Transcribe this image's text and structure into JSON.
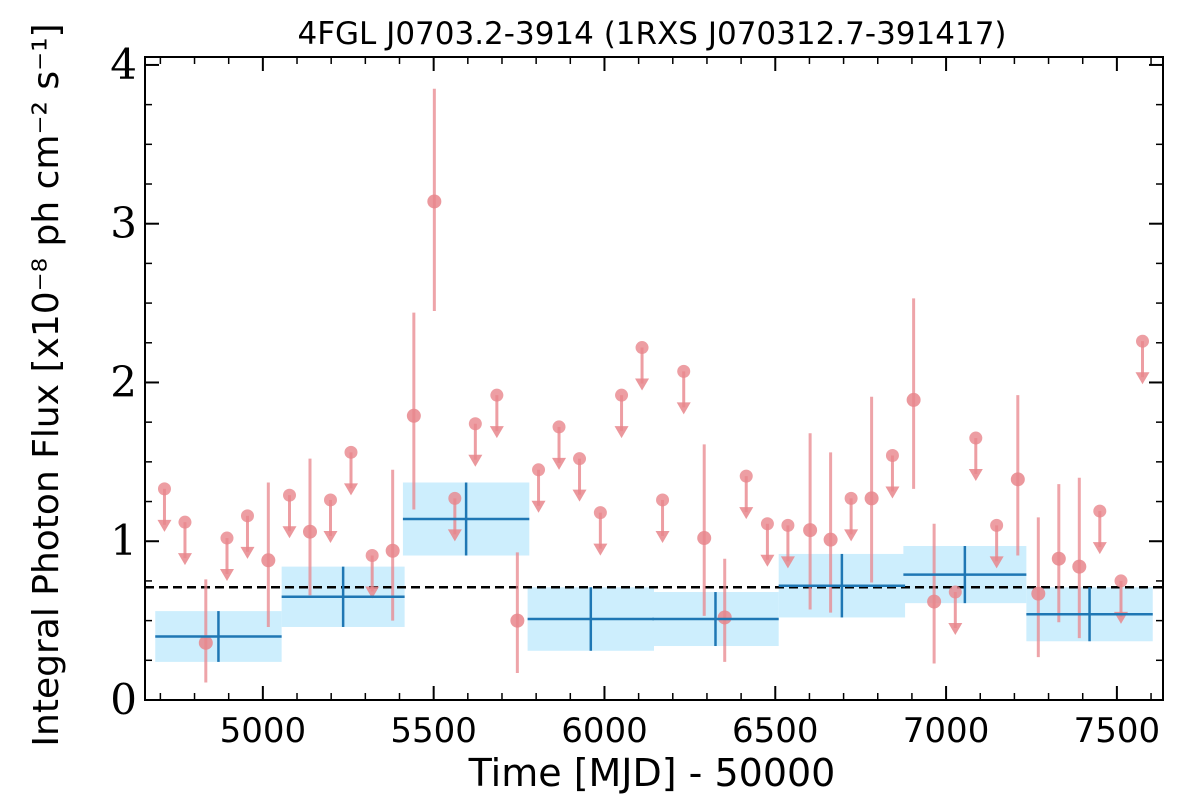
{
  "chart_data": {
    "type": "scatter",
    "title": "4FGL J0703.2-3914 (1RXS J070312.7-391417)",
    "xlabel": "Time [MJD] - 50000",
    "ylabel": "Integral Photon Flux [x10⁻⁸ ph cm⁻² s⁻¹]",
    "xlim": [
      4655,
      7635
    ],
    "ylim": [
      0,
      4.05
    ],
    "xticks": [
      5000,
      5500,
      6000,
      6500,
      7000,
      7500
    ],
    "xtick_labels": [
      "5000",
      "5500",
      "6000",
      "6500",
      "7000",
      "7500"
    ],
    "yticks": [
      0,
      1,
      2,
      3,
      4
    ],
    "ytick_labels": [
      "0",
      "1",
      "2",
      "3",
      "4"
    ],
    "grid": false,
    "reference_line": {
      "y": 0.71,
      "style": "dashed",
      "color": "#000000"
    },
    "series": [
      {
        "kind": "long-bins",
        "color": "#1f77b4",
        "band_color": "#cdeefd",
        "points": [
          {
            "x": 4870,
            "y": 0.4,
            "xerr": 185,
            "yerr": 0.16
          },
          {
            "x": 5235,
            "y": 0.65,
            "xerr": 180,
            "yerr": 0.19
          },
          {
            "x": 5595,
            "y": 1.14,
            "xerr": 185,
            "yerr": 0.23
          },
          {
            "x": 5960,
            "y": 0.51,
            "xerr": 185,
            "yerr": 0.2
          },
          {
            "x": 6325,
            "y": 0.51,
            "xerr": 185,
            "yerr": 0.17
          },
          {
            "x": 6695,
            "y": 0.72,
            "xerr": 185,
            "yerr": 0.2
          },
          {
            "x": 7055,
            "y": 0.79,
            "xerr": 180,
            "yerr": 0.18
          },
          {
            "x": 7420,
            "y": 0.54,
            "xerr": 185,
            "yerr": 0.17
          }
        ]
      },
      {
        "kind": "short-bins",
        "color": "#e8868c",
        "detections": [
          {
            "x": 4833,
            "y": 0.36,
            "lo": 0.11,
            "hi": 0.76
          },
          {
            "x": 5016,
            "y": 0.88,
            "lo": 0.46,
            "hi": 1.37
          },
          {
            "x": 5138,
            "y": 1.06,
            "lo": 0.66,
            "hi": 1.52
          },
          {
            "x": 5380,
            "y": 0.94,
            "lo": 0.5,
            "hi": 1.45
          },
          {
            "x": 5442,
            "y": 1.79,
            "lo": 1.2,
            "hi": 2.44
          },
          {
            "x": 5502,
            "y": 3.14,
            "lo": 2.45,
            "hi": 3.85
          },
          {
            "x": 5745,
            "y": 0.5,
            "lo": 0.17,
            "hi": 0.93
          },
          {
            "x": 6292,
            "y": 1.02,
            "lo": 0.53,
            "hi": 1.61
          },
          {
            "x": 6352,
            "y": 0.52,
            "lo": 0.24,
            "hi": 0.89
          },
          {
            "x": 6602,
            "y": 1.07,
            "lo": 0.57,
            "hi": 1.68
          },
          {
            "x": 6662,
            "y": 1.01,
            "lo": 0.55,
            "hi": 1.56
          },
          {
            "x": 6782,
            "y": 1.27,
            "lo": 0.74,
            "hi": 1.91
          },
          {
            "x": 6905,
            "y": 1.89,
            "lo": 1.33,
            "hi": 2.53
          },
          {
            "x": 6965,
            "y": 0.62,
            "lo": 0.23,
            "hi": 1.11
          },
          {
            "x": 7210,
            "y": 1.39,
            "lo": 0.91,
            "hi": 1.92
          },
          {
            "x": 7270,
            "y": 0.67,
            "lo": 0.27,
            "hi": 1.15
          },
          {
            "x": 7330,
            "y": 0.89,
            "lo": 0.49,
            "hi": 1.36
          },
          {
            "x": 7390,
            "y": 0.84,
            "lo": 0.39,
            "hi": 1.4
          }
        ],
        "upper_limits": [
          {
            "x": 4712,
            "y": 1.33
          },
          {
            "x": 4772,
            "y": 1.12
          },
          {
            "x": 4895,
            "y": 1.02
          },
          {
            "x": 4955,
            "y": 1.16
          },
          {
            "x": 5078,
            "y": 1.29
          },
          {
            "x": 5198,
            "y": 1.26
          },
          {
            "x": 5258,
            "y": 1.56
          },
          {
            "x": 5320,
            "y": 0.91
          },
          {
            "x": 5562,
            "y": 1.27
          },
          {
            "x": 5622,
            "y": 1.74
          },
          {
            "x": 5685,
            "y": 1.92
          },
          {
            "x": 5807,
            "y": 1.45
          },
          {
            "x": 5867,
            "y": 1.72
          },
          {
            "x": 5927,
            "y": 1.52
          },
          {
            "x": 5988,
            "y": 1.18
          },
          {
            "x": 6050,
            "y": 1.92
          },
          {
            "x": 6110,
            "y": 2.22
          },
          {
            "x": 6170,
            "y": 1.26
          },
          {
            "x": 6232,
            "y": 2.07
          },
          {
            "x": 6415,
            "y": 1.41
          },
          {
            "x": 6477,
            "y": 1.11
          },
          {
            "x": 6537,
            "y": 1.1
          },
          {
            "x": 6722,
            "y": 1.27
          },
          {
            "x": 6843,
            "y": 1.54
          },
          {
            "x": 7027,
            "y": 0.68
          },
          {
            "x": 7087,
            "y": 1.65
          },
          {
            "x": 7148,
            "y": 1.1
          },
          {
            "x": 7450,
            "y": 1.19
          },
          {
            "x": 7512,
            "y": 0.75
          },
          {
            "x": 7575,
            "y": 2.26
          }
        ]
      }
    ]
  }
}
